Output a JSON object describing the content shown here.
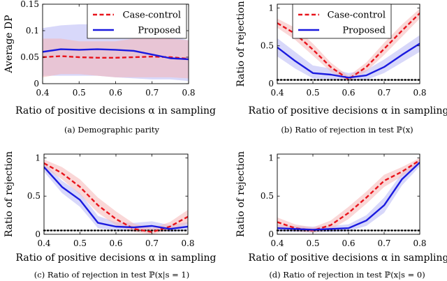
{
  "colors": {
    "case_control": "#e8141c",
    "proposed": "#1a1adf",
    "case_control_band": "#f6b7b7",
    "proposed_band": "#b8b8f6",
    "baseline": "#000000"
  },
  "chart_data": [
    {
      "type": "line",
      "id": "a",
      "caption": "(a)  Demographic parity",
      "xlabel": "Ratio of positive decisions α in sampling",
      "ylabel": "Average DP",
      "xlim": [
        0.4,
        0.8
      ],
      "ylim": [
        0,
        0.15
      ],
      "xticks": [
        "0.4",
        "0.5",
        "0.6",
        "0.7",
        "0.8"
      ],
      "yticks": [
        "0",
        "0.05",
        "0.1",
        "0.15"
      ],
      "legend": {
        "position": "top-right",
        "entries": [
          "Case-control",
          "Proposed"
        ]
      },
      "x": [
        0.4,
        0.45,
        0.5,
        0.55,
        0.6,
        0.65,
        0.7,
        0.75,
        0.8
      ],
      "series": [
        {
          "name": "Case-control",
          "style": "dashed",
          "values": [
            0.05,
            0.052,
            0.05,
            0.049,
            0.049,
            0.05,
            0.051,
            0.05,
            0.047
          ],
          "lower": [
            0.012,
            0.018,
            0.018,
            0.015,
            0.012,
            0.012,
            0.012,
            0.012,
            0.01
          ],
          "upper": [
            0.085,
            0.085,
            0.08,
            0.08,
            0.08,
            0.085,
            0.088,
            0.085,
            0.082
          ]
        },
        {
          "name": "Proposed",
          "style": "solid",
          "values": [
            0.06,
            0.065,
            0.064,
            0.065,
            0.064,
            0.062,
            0.055,
            0.048,
            0.046
          ],
          "lower": [
            0.015,
            0.015,
            0.015,
            0.015,
            0.012,
            0.01,
            0.008,
            0.008,
            0.005
          ],
          "upper": [
            0.105,
            0.11,
            0.112,
            0.112,
            0.11,
            0.108,
            0.1,
            0.09,
            0.082
          ]
        }
      ],
      "baseline": null
    },
    {
      "type": "line",
      "id": "b",
      "caption": "(b)  Ratio of rejection in test ℙ(x)",
      "xlabel": "Ratio of positive decisions α in sampling",
      "ylabel": "Ratio of rejection",
      "xlim": [
        0.4,
        0.8
      ],
      "ylim": [
        0,
        1.05
      ],
      "xticks": [
        "0.4",
        "0.5",
        "0.6",
        "0.7",
        "0.8"
      ],
      "yticks": [
        "0",
        "0.5",
        "1"
      ],
      "legend": {
        "position": "top-right",
        "entries": [
          "Case-control",
          "Proposed"
        ]
      },
      "x": [
        0.4,
        0.45,
        0.5,
        0.55,
        0.6,
        0.65,
        0.7,
        0.75,
        0.8
      ],
      "series": [
        {
          "name": "Case-control",
          "style": "dashed",
          "values": [
            0.8,
            0.66,
            0.45,
            0.22,
            0.06,
            0.22,
            0.46,
            0.7,
            0.93
          ],
          "lower": [
            0.74,
            0.58,
            0.37,
            0.16,
            0.03,
            0.16,
            0.38,
            0.62,
            0.86
          ],
          "upper": [
            0.86,
            0.74,
            0.53,
            0.28,
            0.1,
            0.28,
            0.54,
            0.78,
            0.99
          ]
        },
        {
          "name": "Proposed",
          "style": "solid",
          "values": [
            0.48,
            0.3,
            0.14,
            0.12,
            0.08,
            0.11,
            0.22,
            0.38,
            0.53
          ],
          "lower": [
            0.36,
            0.2,
            0.07,
            0.06,
            0.04,
            0.05,
            0.14,
            0.28,
            0.42
          ],
          "upper": [
            0.6,
            0.42,
            0.24,
            0.2,
            0.14,
            0.18,
            0.32,
            0.48,
            0.64
          ]
        }
      ],
      "baseline": 0.05
    },
    {
      "type": "line",
      "id": "c",
      "caption": "(c)  Ratio of rejection in test ℙ(x|s = 1)",
      "xlabel": "Ratio of positive decisions α in sampling",
      "ylabel": "Ratio of rejection",
      "xlim": [
        0.4,
        0.8
      ],
      "ylim": [
        0,
        1.05
      ],
      "xticks": [
        "0.4",
        "0.5",
        "0.6",
        "0.7",
        "0.8"
      ],
      "yticks": [
        "0",
        "0.5",
        "1"
      ],
      "legend": null,
      "x": [
        0.4,
        0.45,
        0.5,
        0.55,
        0.6,
        0.65,
        0.7,
        0.75,
        0.8
      ],
      "series": [
        {
          "name": "Case-control",
          "style": "dashed",
          "values": [
            0.93,
            0.8,
            0.62,
            0.38,
            0.2,
            0.07,
            0.03,
            0.1,
            0.23
          ],
          "lower": [
            0.88,
            0.72,
            0.52,
            0.28,
            0.12,
            0.03,
            0.0,
            0.05,
            0.14
          ],
          "upper": [
            0.98,
            0.88,
            0.72,
            0.48,
            0.3,
            0.14,
            0.08,
            0.16,
            0.32
          ]
        },
        {
          "name": "Proposed",
          "style": "solid",
          "values": [
            0.88,
            0.62,
            0.45,
            0.15,
            0.1,
            0.09,
            0.11,
            0.07,
            0.1
          ],
          "lower": [
            0.82,
            0.54,
            0.36,
            0.08,
            0.05,
            0.04,
            0.06,
            0.03,
            0.05
          ],
          "upper": [
            0.94,
            0.7,
            0.54,
            0.24,
            0.16,
            0.15,
            0.17,
            0.12,
            0.16
          ]
        }
      ],
      "baseline": 0.05
    },
    {
      "type": "line",
      "id": "d",
      "caption": "(d)  Ratio of rejection in test ℙ(x|s = 0)",
      "xlabel": "Ratio of positive decisions α in sampling",
      "ylabel": "Ratio of rejection",
      "xlim": [
        0.4,
        0.8
      ],
      "ylim": [
        0,
        1.05
      ],
      "xticks": [
        "0.4",
        "0.5",
        "0.6",
        "0.7",
        "0.8"
      ],
      "yticks": [
        "0",
        "0.5",
        "1"
      ],
      "legend": null,
      "x": [
        0.4,
        0.45,
        0.5,
        0.55,
        0.6,
        0.65,
        0.7,
        0.75,
        0.8
      ],
      "series": [
        {
          "name": "Case-control",
          "style": "dashed",
          "values": [
            0.16,
            0.08,
            0.05,
            0.12,
            0.28,
            0.48,
            0.7,
            0.82,
            0.97
          ],
          "lower": [
            0.1,
            0.04,
            0.02,
            0.06,
            0.2,
            0.4,
            0.62,
            0.76,
            0.93
          ],
          "upper": [
            0.22,
            0.13,
            0.09,
            0.18,
            0.36,
            0.56,
            0.78,
            0.88,
            1.0
          ]
        },
        {
          "name": "Proposed",
          "style": "solid",
          "values": [
            0.08,
            0.07,
            0.06,
            0.07,
            0.08,
            0.18,
            0.38,
            0.72,
            0.94
          ],
          "lower": [
            0.04,
            0.03,
            0.02,
            0.03,
            0.04,
            0.11,
            0.28,
            0.64,
            0.89
          ],
          "upper": [
            0.12,
            0.11,
            0.1,
            0.11,
            0.13,
            0.25,
            0.48,
            0.8,
            0.98
          ]
        }
      ],
      "baseline": 0.05
    }
  ]
}
